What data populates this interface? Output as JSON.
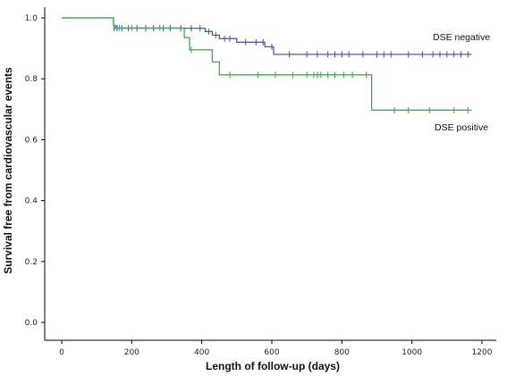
{
  "chart_data": {
    "type": "line",
    "subtype": "kaplan-meier",
    "xlabel": "Length of follow-up (days)",
    "ylabel": "Survival free from cardiovascular events",
    "xlim": [
      0,
      1200
    ],
    "ylim": [
      0,
      1.0
    ],
    "x_ticks": [
      "0",
      "200",
      "400",
      "600",
      "800",
      "1000",
      "1200"
    ],
    "y_ticks": [
      "0.0",
      "0.2",
      "0.4",
      "0.6",
      "0.8",
      "1.0"
    ],
    "grid": false,
    "series": [
      {
        "name": "DSE negative",
        "color": "#4a5fa8",
        "steps": [
          [
            0,
            1.0
          ],
          [
            148,
            0.975
          ],
          [
            150,
            0.966
          ],
          [
            410,
            0.955
          ],
          [
            430,
            0.943
          ],
          [
            450,
            0.932
          ],
          [
            500,
            0.92
          ],
          [
            580,
            0.905
          ],
          [
            605,
            0.88
          ],
          [
            1170,
            0.88
          ]
        ],
        "censored": [
          150,
          158,
          172,
          190,
          215,
          240,
          262,
          290,
          310,
          340,
          370,
          395,
          420,
          440,
          465,
          480,
          525,
          555,
          575,
          600,
          650,
          700,
          730,
          760,
          780,
          800,
          820,
          860,
          900,
          920,
          940,
          990,
          1030,
          1060,
          1080,
          1100,
          1120,
          1140,
          1160
        ]
      },
      {
        "name": "DSE positive",
        "color": "#3fae4a",
        "steps": [
          [
            0,
            1.0
          ],
          [
            148,
            0.975
          ],
          [
            155,
            0.967
          ],
          [
            350,
            0.935
          ],
          [
            365,
            0.895
          ],
          [
            430,
            0.855
          ],
          [
            450,
            0.813
          ],
          [
            885,
            0.697
          ],
          [
            1170,
            0.697
          ]
        ],
        "censored": [
          165,
          200,
          280,
          370,
          480,
          560,
          610,
          660,
          700,
          720,
          730,
          740,
          760,
          780,
          805,
          830,
          870,
          950,
          990,
          1050,
          1120,
          1160
        ]
      }
    ]
  }
}
